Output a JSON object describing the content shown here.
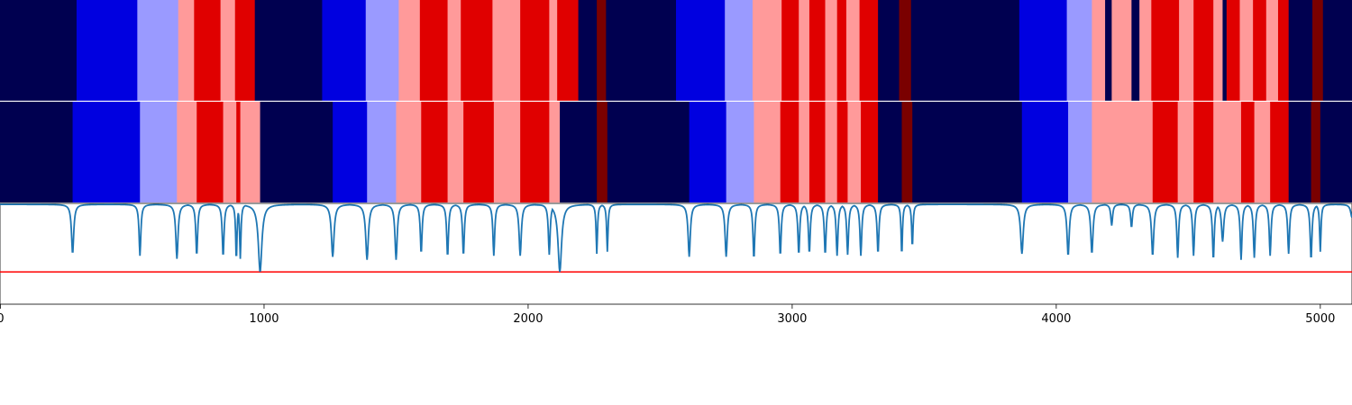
{
  "chart_data": [
    {
      "type": "heatmap",
      "panel": "segmentation-a",
      "xlim": [
        0,
        5120
      ],
      "class_colors": {
        "0": "#000050",
        "1": "#0000e0",
        "2": "#9a9aff",
        "3": "#ff9a9a",
        "4": "#e00000",
        "5": "#7a0000"
      },
      "segments": [
        [
          0,
          290,
          0
        ],
        [
          290,
          520,
          1
        ],
        [
          520,
          675,
          2
        ],
        [
          675,
          735,
          3
        ],
        [
          735,
          835,
          4
        ],
        [
          835,
          890,
          3
        ],
        [
          890,
          965,
          4
        ],
        [
          965,
          1220,
          0
        ],
        [
          1220,
          1385,
          1
        ],
        [
          1385,
          1510,
          2
        ],
        [
          1510,
          1590,
          3
        ],
        [
          1590,
          1695,
          4
        ],
        [
          1695,
          1745,
          3
        ],
        [
          1745,
          1865,
          4
        ],
        [
          1865,
          1970,
          3
        ],
        [
          1970,
          2080,
          4
        ],
        [
          2080,
          2110,
          3
        ],
        [
          2110,
          2190,
          4
        ],
        [
          2190,
          2260,
          0
        ],
        [
          2260,
          2295,
          5
        ],
        [
          2295,
          2560,
          0
        ],
        [
          2560,
          2745,
          1
        ],
        [
          2745,
          2850,
          2
        ],
        [
          2850,
          2960,
          3
        ],
        [
          2960,
          3025,
          4
        ],
        [
          3025,
          3065,
          3
        ],
        [
          3065,
          3125,
          4
        ],
        [
          3125,
          3170,
          3
        ],
        [
          3170,
          3205,
          4
        ],
        [
          3205,
          3255,
          3
        ],
        [
          3255,
          3325,
          4
        ],
        [
          3325,
          3405,
          0
        ],
        [
          3405,
          3450,
          5
        ],
        [
          3450,
          3860,
          0
        ],
        [
          3860,
          4040,
          1
        ],
        [
          4040,
          4135,
          2
        ],
        [
          4135,
          4185,
          3
        ],
        [
          4185,
          4210,
          0
        ],
        [
          4210,
          4285,
          3
        ],
        [
          4285,
          4315,
          0
        ],
        [
          4315,
          4360,
          3
        ],
        [
          4360,
          4465,
          4
        ],
        [
          4465,
          4520,
          3
        ],
        [
          4520,
          4595,
          4
        ],
        [
          4595,
          4630,
          3
        ],
        [
          4630,
          4645,
          0
        ],
        [
          4645,
          4695,
          4
        ],
        [
          4695,
          4745,
          3
        ],
        [
          4745,
          4795,
          4
        ],
        [
          4795,
          4840,
          3
        ],
        [
          4840,
          4880,
          4
        ],
        [
          4880,
          4970,
          0
        ],
        [
          4970,
          5010,
          5
        ],
        [
          5010,
          5120,
          0
        ]
      ]
    },
    {
      "type": "heatmap",
      "panel": "segmentation-b",
      "xlim": [
        0,
        5120
      ],
      "segments": [
        [
          0,
          275,
          0
        ],
        [
          275,
          530,
          1
        ],
        [
          530,
          670,
          2
        ],
        [
          670,
          745,
          3
        ],
        [
          745,
          845,
          4
        ],
        [
          845,
          895,
          3
        ],
        [
          895,
          910,
          4
        ],
        [
          910,
          985,
          3
        ],
        [
          985,
          1260,
          0
        ],
        [
          1260,
          1390,
          1
        ],
        [
          1390,
          1500,
          2
        ],
        [
          1500,
          1595,
          3
        ],
        [
          1595,
          1695,
          4
        ],
        [
          1695,
          1755,
          3
        ],
        [
          1755,
          1870,
          4
        ],
        [
          1870,
          1970,
          3
        ],
        [
          1970,
          2080,
          4
        ],
        [
          2080,
          2120,
          3
        ],
        [
          2120,
          2260,
          0
        ],
        [
          2260,
          2300,
          5
        ],
        [
          2300,
          2610,
          0
        ],
        [
          2610,
          2750,
          1
        ],
        [
          2750,
          2855,
          2
        ],
        [
          2855,
          2955,
          3
        ],
        [
          2955,
          3025,
          4
        ],
        [
          3025,
          3065,
          3
        ],
        [
          3065,
          3125,
          4
        ],
        [
          3125,
          3170,
          3
        ],
        [
          3170,
          3210,
          4
        ],
        [
          3210,
          3260,
          3
        ],
        [
          3260,
          3325,
          4
        ],
        [
          3325,
          3415,
          0
        ],
        [
          3415,
          3455,
          5
        ],
        [
          3455,
          3870,
          0
        ],
        [
          3870,
          4045,
          1
        ],
        [
          4045,
          4135,
          2
        ],
        [
          4135,
          4365,
          3
        ],
        [
          4365,
          4460,
          4
        ],
        [
          4460,
          4520,
          3
        ],
        [
          4520,
          4595,
          4
        ],
        [
          4595,
          4700,
          3
        ],
        [
          4700,
          4750,
          4
        ],
        [
          4750,
          4810,
          3
        ],
        [
          4810,
          4880,
          4
        ],
        [
          4880,
          4965,
          0
        ],
        [
          4965,
          5000,
          5
        ],
        [
          5000,
          5120,
          0
        ]
      ]
    },
    {
      "type": "line",
      "panel": "confidence",
      "xlim": [
        0,
        5120
      ],
      "ylim": [
        0,
        1
      ],
      "line_color": "#1f77b4",
      "threshold": 0.32,
      "threshold_color": "#ff0000",
      "baseline": 0.99,
      "dips": [
        [
          275,
          0.5,
          5
        ],
        [
          530,
          0.48,
          4
        ],
        [
          670,
          0.45,
          5
        ],
        [
          745,
          0.48,
          4
        ],
        [
          845,
          0.47,
          4
        ],
        [
          895,
          0.43,
          3
        ],
        [
          910,
          0.45,
          3
        ],
        [
          985,
          0.32,
          8
        ],
        [
          1260,
          0.47,
          6
        ],
        [
          1390,
          0.44,
          6
        ],
        [
          1500,
          0.44,
          5
        ],
        [
          1595,
          0.5,
          4
        ],
        [
          1695,
          0.47,
          4
        ],
        [
          1755,
          0.48,
          4
        ],
        [
          1870,
          0.48,
          4
        ],
        [
          1970,
          0.48,
          5
        ],
        [
          2080,
          0.49,
          4
        ],
        [
          2120,
          0.32,
          8
        ],
        [
          2260,
          0.5,
          3
        ],
        [
          2300,
          0.52,
          3
        ],
        [
          2610,
          0.47,
          5
        ],
        [
          2750,
          0.47,
          5
        ],
        [
          2855,
          0.45,
          4
        ],
        [
          2955,
          0.48,
          4
        ],
        [
          3025,
          0.49,
          4
        ],
        [
          3065,
          0.5,
          4
        ],
        [
          3125,
          0.49,
          4
        ],
        [
          3170,
          0.48,
          4
        ],
        [
          3210,
          0.49,
          4
        ],
        [
          3260,
          0.48,
          4
        ],
        [
          3325,
          0.5,
          4
        ],
        [
          3415,
          0.48,
          3
        ],
        [
          3455,
          0.56,
          3
        ],
        [
          3870,
          0.5,
          6
        ],
        [
          4045,
          0.48,
          5
        ],
        [
          4135,
          0.5,
          5
        ],
        [
          4210,
          0.78,
          4
        ],
        [
          4285,
          0.76,
          4
        ],
        [
          4365,
          0.48,
          5
        ],
        [
          4460,
          0.46,
          4
        ],
        [
          4520,
          0.48,
          4
        ],
        [
          4595,
          0.44,
          4
        ],
        [
          4630,
          0.62,
          5
        ],
        [
          4700,
          0.44,
          4
        ],
        [
          4750,
          0.46,
          4
        ],
        [
          4810,
          0.48,
          4
        ],
        [
          4880,
          0.5,
          4
        ],
        [
          4965,
          0.44,
          4
        ],
        [
          5000,
          0.52,
          3
        ],
        [
          5120,
          0.86,
          6
        ]
      ],
      "xticks": [
        0,
        1000,
        2000,
        3000,
        4000,
        5000
      ],
      "xtick_labels": [
        "0",
        "1000",
        "2000",
        "3000",
        "4000",
        "5000"
      ]
    }
  ]
}
